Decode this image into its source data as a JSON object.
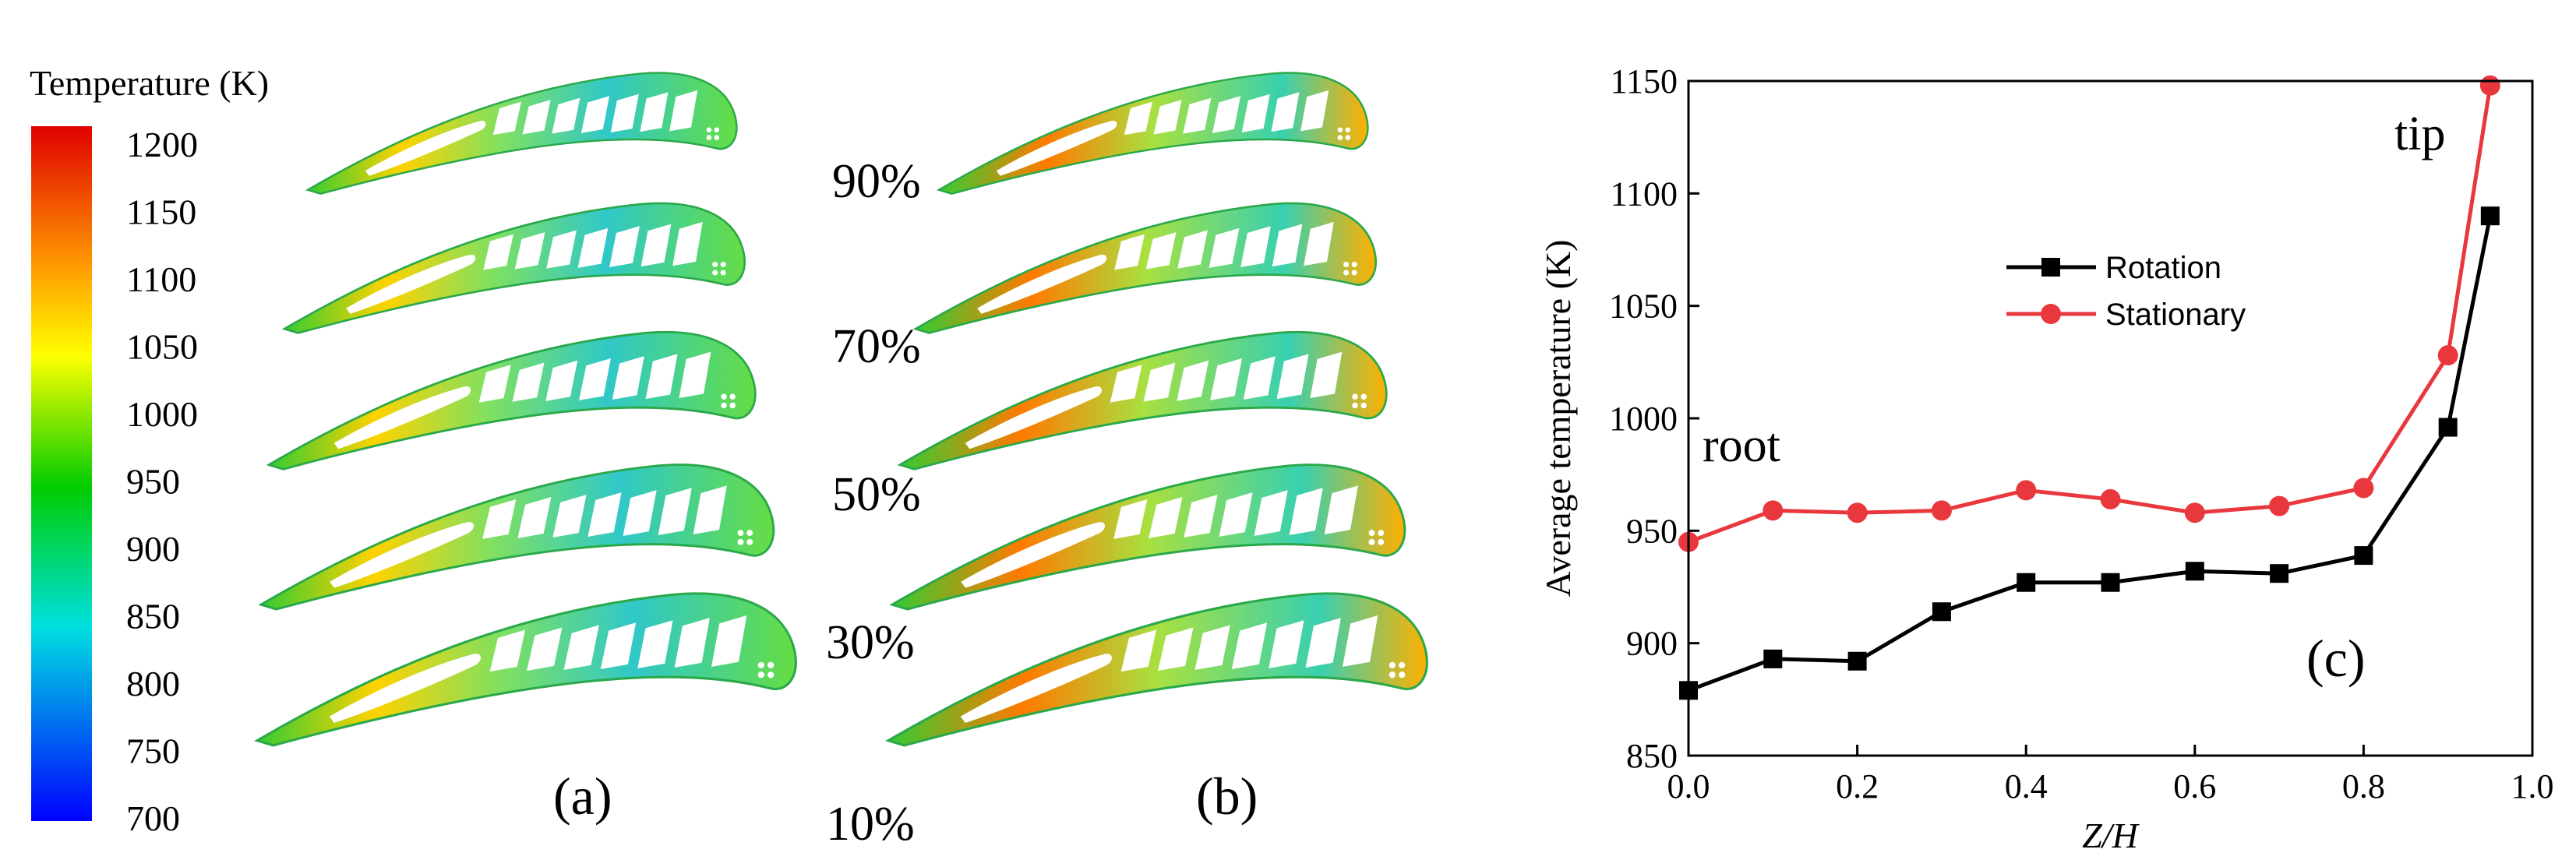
{
  "colorbar": {
    "title": "Temperature (K)",
    "ticks": [
      "1200",
      "1150",
      "1100",
      "1050",
      "1000",
      "950",
      "900",
      "850",
      "800",
      "750",
      "700"
    ],
    "colors": [
      "#e00000",
      "#ff9900",
      "#ffff00",
      "#00cc00",
      "#00e0e0",
      "#0000ff"
    ]
  },
  "panel_a": {
    "label": "(a)",
    "span_labels": [
      "90%",
      "70%",
      "50%",
      "30%",
      "10%"
    ]
  },
  "panel_b": {
    "label": "(b)"
  },
  "chart_data": {
    "type": "line",
    "title": "",
    "xlabel": "Z/H",
    "ylabel": "Average temperature (K)",
    "xlim": [
      0.0,
      1.0
    ],
    "ylim": [
      850,
      1150
    ],
    "xticks": [
      "0.0",
      "0.2",
      "0.4",
      "0.6",
      "0.8",
      "1.0"
    ],
    "yticks": [
      "850",
      "900",
      "950",
      "1000",
      "1050",
      "1100",
      "1150"
    ],
    "x": [
      0.0,
      0.1,
      0.2,
      0.3,
      0.4,
      0.5,
      0.6,
      0.7,
      0.8,
      0.9,
      0.95
    ],
    "series": [
      {
        "name": "Rotation",
        "color": "#000000",
        "marker": "square",
        "values": [
          879,
          893,
          892,
          914,
          927,
          927,
          932,
          931,
          939,
          996,
          1090
        ]
      },
      {
        "name": "Stationary",
        "color": "#e8383d",
        "marker": "circle",
        "values": [
          945,
          959,
          958,
          959,
          968,
          964,
          958,
          961,
          969,
          1028,
          1148
        ]
      }
    ],
    "annotations": [
      "root",
      "tip",
      "(c)"
    ],
    "legend_position": "upper-middle"
  }
}
